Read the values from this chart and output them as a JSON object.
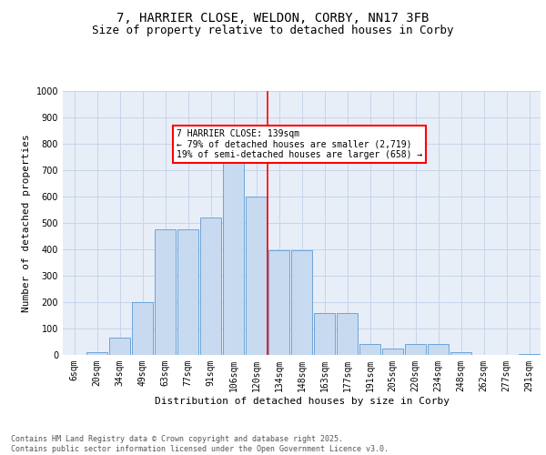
{
  "title_line1": "7, HARRIER CLOSE, WELDON, CORBY, NN17 3FB",
  "title_line2": "Size of property relative to detached houses in Corby",
  "xlabel": "Distribution of detached houses by size in Corby",
  "ylabel": "Number of detached properties",
  "categories": [
    "6sqm",
    "20sqm",
    "34sqm",
    "49sqm",
    "63sqm",
    "77sqm",
    "91sqm",
    "106sqm",
    "120sqm",
    "134sqm",
    "148sqm",
    "163sqm",
    "177sqm",
    "191sqm",
    "205sqm",
    "220sqm",
    "234sqm",
    "248sqm",
    "262sqm",
    "277sqm",
    "291sqm"
  ],
  "bar_heights": [
    0,
    10,
    65,
    200,
    475,
    475,
    520,
    760,
    600,
    395,
    395,
    160,
    160,
    40,
    25,
    40,
    40,
    10,
    0,
    0,
    5
  ],
  "bar_color": "#c8daf0",
  "bar_edge_color": "#5b9bd5",
  "grid_color": "#c8d4e8",
  "background_color": "#e8eef8",
  "vline_color": "red",
  "annotation_text": "7 HARRIER CLOSE: 139sqm\n← 79% of detached houses are smaller (2,719)\n19% of semi-detached houses are larger (658) →",
  "annotation_box_color": "red",
  "ylim": [
    0,
    1000
  ],
  "yticks": [
    0,
    100,
    200,
    300,
    400,
    500,
    600,
    700,
    800,
    900,
    1000
  ],
  "footer_text": "Contains HM Land Registry data © Crown copyright and database right 2025.\nContains public sector information licensed under the Open Government Licence v3.0.",
  "title_fontsize": 10,
  "subtitle_fontsize": 9,
  "axis_fontsize": 8,
  "tick_fontsize": 7,
  "annotation_fontsize": 7,
  "footer_fontsize": 6
}
